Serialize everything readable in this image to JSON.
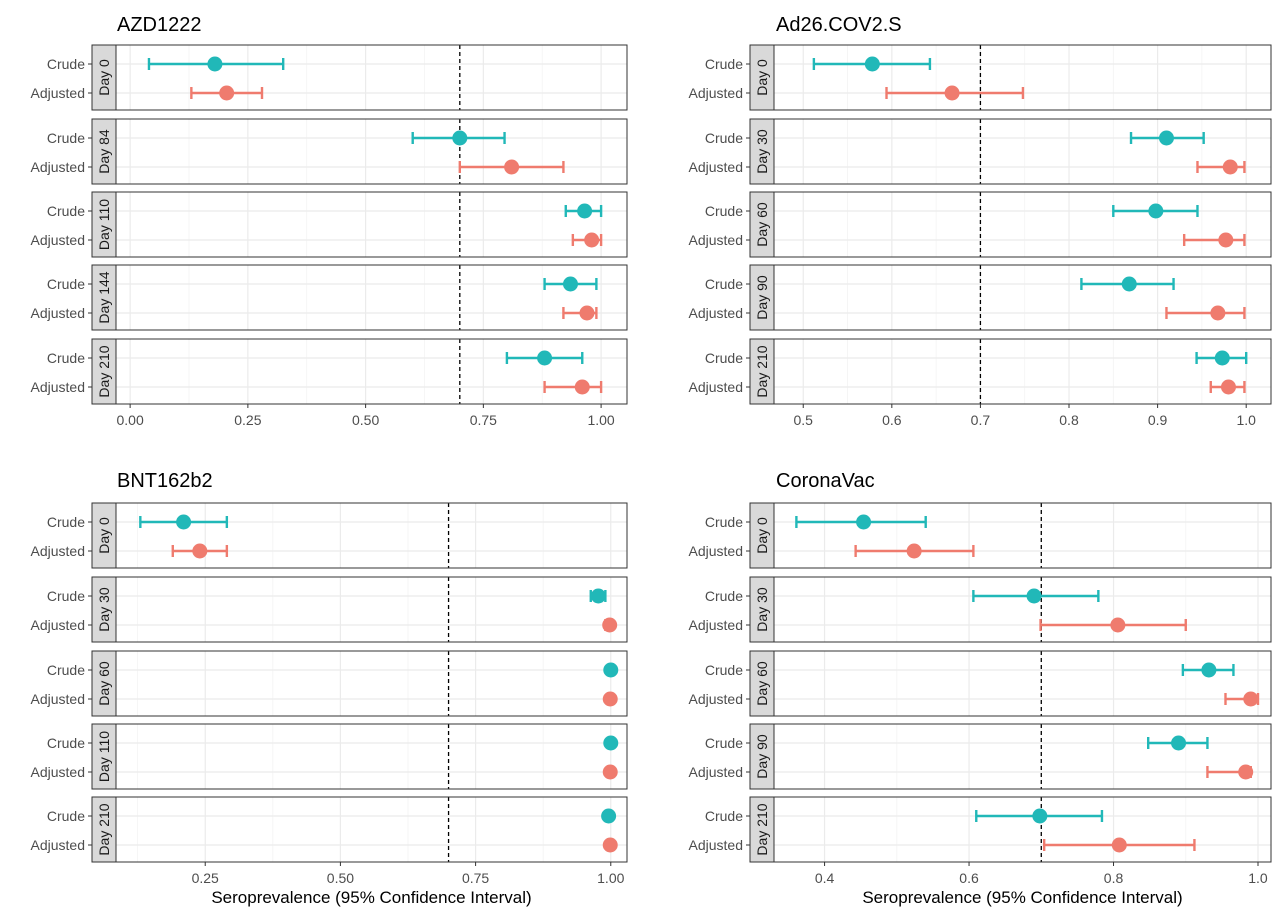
{
  "chart_data": [
    {
      "type": "forest",
      "title": "AZD1222",
      "xlabel": "",
      "xlim": [
        -0.03,
        1.055
      ],
      "ticks": [
        0.0,
        0.25,
        0.5,
        0.75,
        1.0
      ],
      "tick_labels": [
        "0.00",
        "0.25",
        "0.50",
        "0.75",
        "1.00"
      ],
      "reference_line": 0.7,
      "panels": [
        {
          "label": "Day 0",
          "rows": [
            {
              "name": "Crude",
              "estimate": 0.18,
              "lower": 0.04,
              "upper": 0.325
            },
            {
              "name": "Adjusted",
              "estimate": 0.205,
              "lower": 0.13,
              "upper": 0.28
            }
          ]
        },
        {
          "label": "Day 84",
          "rows": [
            {
              "name": "Crude",
              "estimate": 0.7,
              "lower": 0.6,
              "upper": 0.795
            },
            {
              "name": "Adjusted",
              "estimate": 0.81,
              "lower": 0.7,
              "upper": 0.92
            }
          ]
        },
        {
          "label": "Day 110",
          "rows": [
            {
              "name": "Crude",
              "estimate": 0.965,
              "lower": 0.925,
              "upper": 1.0
            },
            {
              "name": "Adjusted",
              "estimate": 0.98,
              "lower": 0.94,
              "upper": 1.0
            }
          ]
        },
        {
          "label": "Day 144",
          "rows": [
            {
              "name": "Crude",
              "estimate": 0.935,
              "lower": 0.88,
              "upper": 0.99
            },
            {
              "name": "Adjusted",
              "estimate": 0.97,
              "lower": 0.92,
              "upper": 0.99
            }
          ]
        },
        {
          "label": "Day 210",
          "rows": [
            {
              "name": "Crude",
              "estimate": 0.88,
              "lower": 0.8,
              "upper": 0.96
            },
            {
              "name": "Adjusted",
              "estimate": 0.96,
              "lower": 0.88,
              "upper": 1.0
            }
          ]
        }
      ]
    },
    {
      "type": "forest",
      "title": "Ad26.COV2.S",
      "xlabel": "",
      "xlim": [
        0.467,
        1.028
      ],
      "ticks": [
        0.5,
        0.6,
        0.7,
        0.8,
        0.9,
        1.0
      ],
      "tick_labels": [
        "0.5",
        "0.6",
        "0.7",
        "0.8",
        "0.9",
        "1.0"
      ],
      "reference_line": 0.7,
      "panels": [
        {
          "label": "Day 0",
          "rows": [
            {
              "name": "Crude",
              "estimate": 0.578,
              "lower": 0.512,
              "upper": 0.643
            },
            {
              "name": "Adjusted",
              "estimate": 0.668,
              "lower": 0.594,
              "upper": 0.748
            }
          ]
        },
        {
          "label": "Day 30",
          "rows": [
            {
              "name": "Crude",
              "estimate": 0.91,
              "lower": 0.87,
              "upper": 0.952
            },
            {
              "name": "Adjusted",
              "estimate": 0.982,
              "lower": 0.945,
              "upper": 0.998
            }
          ]
        },
        {
          "label": "Day 60",
          "rows": [
            {
              "name": "Crude",
              "estimate": 0.898,
              "lower": 0.85,
              "upper": 0.945
            },
            {
              "name": "Adjusted",
              "estimate": 0.977,
              "lower": 0.93,
              "upper": 0.998
            }
          ]
        },
        {
          "label": "Day 90",
          "rows": [
            {
              "name": "Crude",
              "estimate": 0.868,
              "lower": 0.814,
              "upper": 0.918
            },
            {
              "name": "Adjusted",
              "estimate": 0.968,
              "lower": 0.91,
              "upper": 0.998
            }
          ]
        },
        {
          "label": "Day 210",
          "rows": [
            {
              "name": "Crude",
              "estimate": 0.973,
              "lower": 0.944,
              "upper": 1.0
            },
            {
              "name": "Adjusted",
              "estimate": 0.98,
              "lower": 0.96,
              "upper": 0.998
            }
          ]
        }
      ]
    },
    {
      "type": "forest",
      "title": "BNT162b2",
      "xlabel": "Seroprevalence (95% Confidence Interval)",
      "xlim": [
        0.085,
        1.03
      ],
      "ticks": [
        0.25,
        0.5,
        0.75,
        1.0
      ],
      "tick_labels": [
        "0.25",
        "0.50",
        "0.75",
        "1.00"
      ],
      "reference_line": 0.7,
      "panels": [
        {
          "label": "Day 0",
          "rows": [
            {
              "name": "Crude",
              "estimate": 0.21,
              "lower": 0.13,
              "upper": 0.29
            },
            {
              "name": "Adjusted",
              "estimate": 0.24,
              "lower": 0.19,
              "upper": 0.29
            }
          ]
        },
        {
          "label": "Day 30",
          "rows": [
            {
              "name": "Crude",
              "estimate": 0.977,
              "lower": 0.963,
              "upper": 0.99
            },
            {
              "name": "Adjusted",
              "estimate": 0.998,
              "lower": 0.99,
              "upper": 1.0
            }
          ]
        },
        {
          "label": "Day 60",
          "rows": [
            {
              "name": "Crude",
              "estimate": 1.0,
              "lower": 0.997,
              "upper": 1.0
            },
            {
              "name": "Adjusted",
              "estimate": 0.999,
              "lower": 0.995,
              "upper": 1.0
            }
          ]
        },
        {
          "label": "Day 110",
          "rows": [
            {
              "name": "Crude",
              "estimate": 1.0,
              "lower": 0.997,
              "upper": 1.0
            },
            {
              "name": "Adjusted",
              "estimate": 0.999,
              "lower": 0.995,
              "upper": 1.0
            }
          ]
        },
        {
          "label": "Day 210",
          "rows": [
            {
              "name": "Crude",
              "estimate": 0.996,
              "lower": 0.99,
              "upper": 1.0
            },
            {
              "name": "Adjusted",
              "estimate": 0.999,
              "lower": 0.995,
              "upper": 1.0
            }
          ]
        }
      ]
    },
    {
      "type": "forest",
      "title": "CoronaVac",
      "xlabel": "Seroprevalence (95% Confidence Interval)",
      "xlim": [
        0.33,
        1.018
      ],
      "ticks": [
        0.4,
        0.6,
        0.8,
        1.0
      ],
      "tick_labels": [
        "0.4",
        "0.6",
        "0.8",
        "1.0"
      ],
      "reference_line": 0.7,
      "panels": [
        {
          "label": "Day 0",
          "rows": [
            {
              "name": "Crude",
              "estimate": 0.454,
              "lower": 0.361,
              "upper": 0.54
            },
            {
              "name": "Adjusted",
              "estimate": 0.524,
              "lower": 0.443,
              "upper": 0.606
            }
          ]
        },
        {
          "label": "Day 30",
          "rows": [
            {
              "name": "Crude",
              "estimate": 0.69,
              "lower": 0.606,
              "upper": 0.779
            },
            {
              "name": "Adjusted",
              "estimate": 0.806,
              "lower": 0.699,
              "upper": 0.9
            }
          ]
        },
        {
          "label": "Day 60",
          "rows": [
            {
              "name": "Crude",
              "estimate": 0.932,
              "lower": 0.896,
              "upper": 0.966
            },
            {
              "name": "Adjusted",
              "estimate": 0.99,
              "lower": 0.955,
              "upper": 1.0
            }
          ]
        },
        {
          "label": "Day 90",
          "rows": [
            {
              "name": "Crude",
              "estimate": 0.89,
              "lower": 0.848,
              "upper": 0.93
            },
            {
              "name": "Adjusted",
              "estimate": 0.983,
              "lower": 0.93,
              "upper": 0.99
            }
          ]
        },
        {
          "label": "Day 210",
          "rows": [
            {
              "name": "Crude",
              "estimate": 0.698,
              "lower": 0.61,
              "upper": 0.784
            },
            {
              "name": "Adjusted",
              "estimate": 0.808,
              "lower": 0.704,
              "upper": 0.912
            }
          ]
        }
      ]
    }
  ],
  "colors": {
    "crude": "#21b8b8",
    "adjusted": "#ef7b6e",
    "strip_fill": "#d9d9d9",
    "grid": "#ebebeb",
    "frame": "#333333",
    "reference_line": "#000000"
  }
}
